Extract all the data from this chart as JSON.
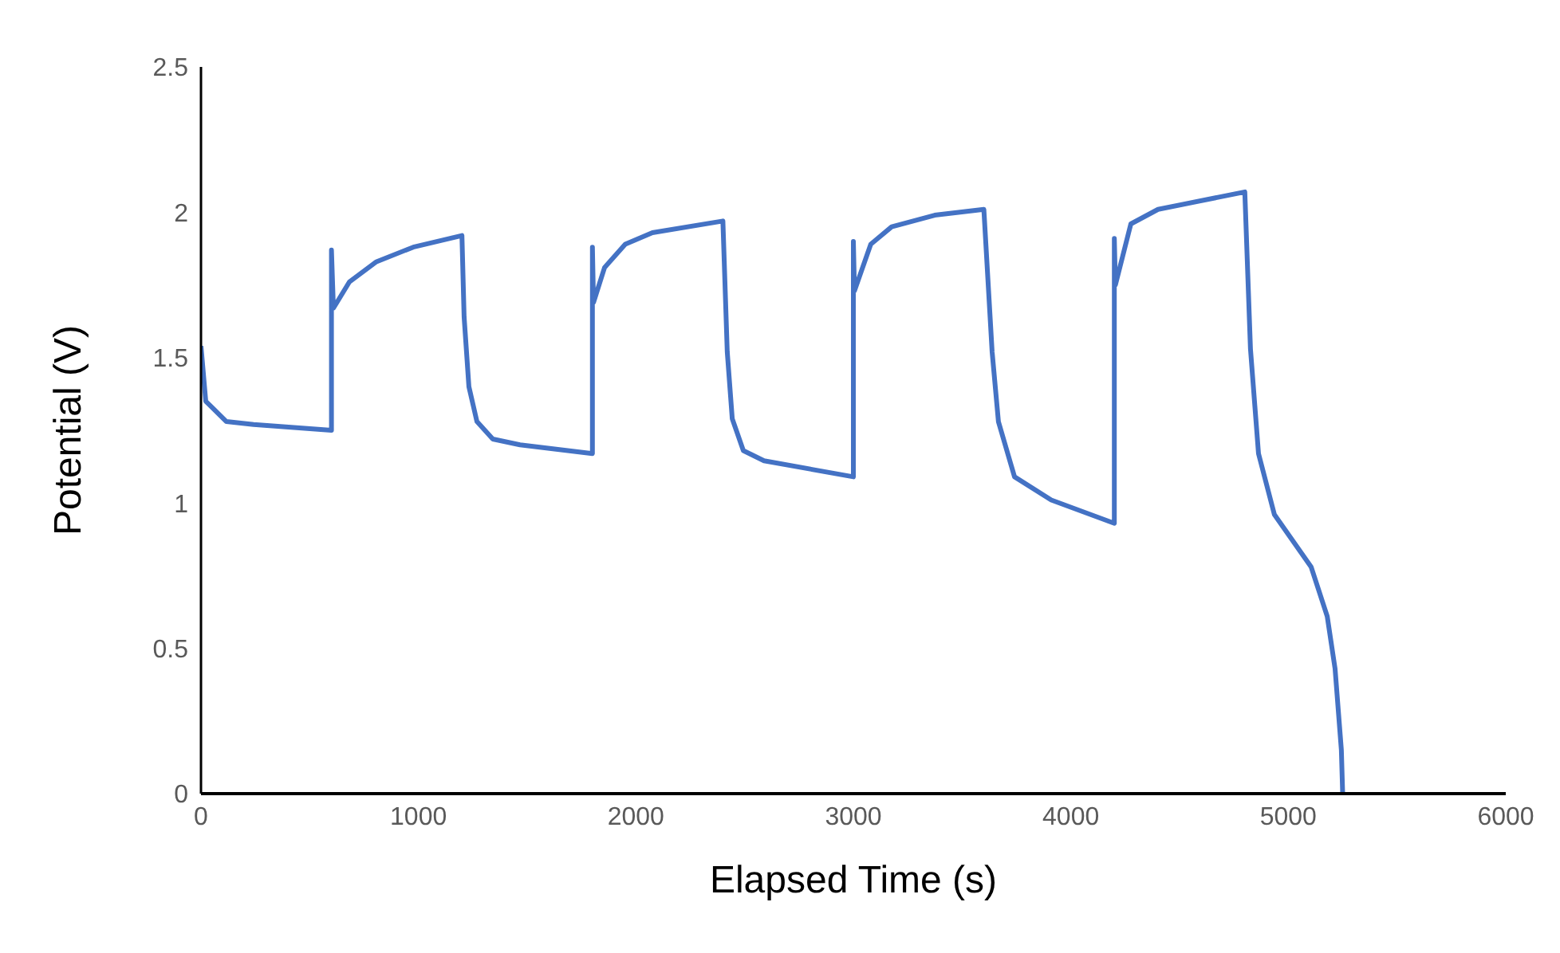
{
  "chart_data": {
    "type": "line",
    "xlabel": "Elapsed Time (s)",
    "ylabel": "Potential (V)",
    "x": [
      0,
      22,
      117,
      242,
      600,
      600,
      609,
      682,
      807,
      976,
      1200,
      1210,
      1232,
      1269,
      1342,
      1467,
      1800,
      1800,
      1805,
      1856,
      1951,
      2076,
      2400,
      2420,
      2443,
      2494,
      2589,
      3000,
      3000,
      3005,
      3080,
      3176,
      3374,
      3600,
      3638,
      3667,
      3741,
      3910,
      4200,
      4200,
      4205,
      4276,
      4401,
      4800,
      4826,
      4863,
      4936,
      5105,
      5179,
      5215,
      5244,
      5250
    ],
    "series": [
      {
        "color": "#4472c4",
        "values": [
          1.54,
          1.35,
          1.28,
          1.27,
          1.25,
          1.87,
          1.67,
          1.76,
          1.83,
          1.88,
          1.92,
          1.64,
          1.4,
          1.28,
          1.22,
          1.2,
          1.17,
          1.88,
          1.69,
          1.81,
          1.89,
          1.93,
          1.97,
          1.52,
          1.29,
          1.18,
          1.145,
          1.09,
          1.9,
          1.73,
          1.89,
          1.95,
          1.99,
          2.01,
          1.52,
          1.28,
          1.09,
          1.01,
          0.93,
          1.91,
          1.75,
          1.96,
          2.01,
          2.07,
          1.53,
          1.17,
          0.96,
          0.78,
          0.61,
          0.43,
          0.15,
          0
        ]
      }
    ],
    "xlim": [
      0,
      6000
    ],
    "xticks": [
      0,
      1000,
      2000,
      3000,
      4000,
      5000,
      6000
    ],
    "ylim": [
      0,
      2.5
    ],
    "yticks": [
      0,
      0.5,
      1,
      1.5,
      2,
      2.5
    ],
    "grid": false,
    "legend": false,
    "marker": "none",
    "line_style": "solid"
  }
}
